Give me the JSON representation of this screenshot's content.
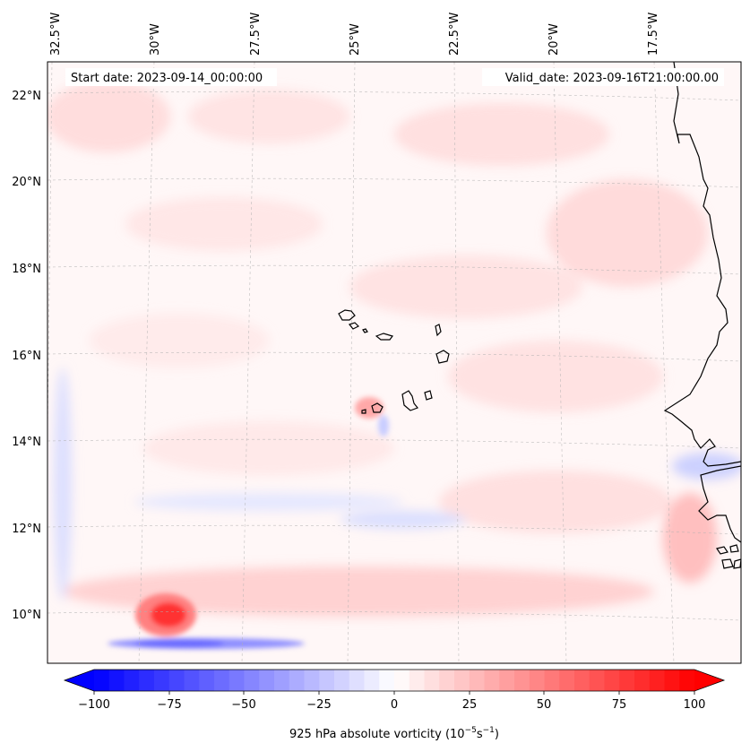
{
  "map": {
    "start_date_label": "Start date: 2023-09-14_00:00:00",
    "valid_date_label": "Valid_date: 2023-09-16T21:00:00.00",
    "lon_labels": [
      "32.5°W",
      "30°W",
      "27.5°W",
      "25°W",
      "22.5°W",
      "20°W",
      "17.5°W"
    ],
    "lat_labels": [
      "22°N",
      "20°N",
      "18°N",
      "16°N",
      "14°N",
      "12°N",
      "10°N"
    ]
  },
  "colorbar": {
    "ticks": [
      "−100",
      "−75",
      "−50",
      "−25",
      "0",
      "25",
      "50",
      "75",
      "100"
    ],
    "label_prefix": "925 hPa absolute vorticity (10",
    "label_exp1": "−5",
    "label_mid": "s",
    "label_exp2": "−1",
    "label_suffix": ")",
    "min": -100,
    "max": 100,
    "low_color": "#0000ff",
    "mid_color": "#ffffff",
    "high_color": "#ff0000"
  },
  "colors": {
    "land_outline": "#000000",
    "gridline": "#b0b0b0"
  }
}
